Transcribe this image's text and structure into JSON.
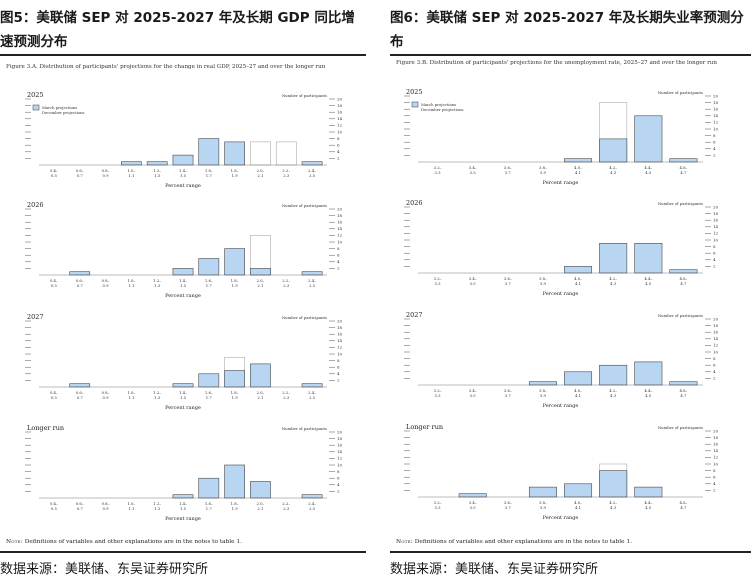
{
  "panels": [
    {
      "heading": "图5：美联储 SEP 对 2025-2027 年及长期 GDP 同比增速预测分布",
      "figure_caption": "Figure 3.A. Distribution of participants' projections for the change in real GDP, 2025–27 and over the longer run",
      "note_label": "Note:",
      "note_text": "Definitions of variables and other explanations are in the notes to table 1.",
      "source": "数据来源：美联储、东吴证券研究所"
    },
    {
      "heading": "图6：美联储 SEP 对 2025-2027 年及长期失业率预测分布",
      "figure_caption": "Figure 3.B. Distribution of participants' projections for the unemployment rate, 2025–27 and over the longer run",
      "note_label": "Note:",
      "note_text": "Definitions of variables and other explanations are in the notes to table 1.",
      "source": "数据来源：美联储、东吴证券研究所"
    }
  ],
  "chart_data": [
    {
      "type": "bar",
      "figure": "gdp",
      "title": "2025",
      "categories": [
        "0.4–0.5",
        "0.6–0.7",
        "0.8–0.9",
        "1.0–1.1",
        "1.2–1.3",
        "1.4–1.5",
        "1.6–1.7",
        "1.8–1.9",
        "2.0–2.1",
        "2.2–2.3",
        "2.4–2.5"
      ],
      "series": [
        {
          "name": "March projections",
          "values": [
            0,
            0,
            0,
            1,
            1,
            3,
            8,
            7,
            0,
            0,
            1
          ]
        },
        {
          "name": "December projections",
          "values": [
            0,
            0,
            0,
            0,
            0,
            0,
            0,
            0,
            7,
            7,
            0
          ]
        }
      ],
      "xlabel": "Percent range",
      "ylabel": "Number of participants",
      "ylim": [
        0,
        20
      ],
      "yticks": [
        2,
        4,
        6,
        8,
        10,
        12,
        14,
        16,
        18,
        20
      ],
      "legend": "top-left"
    },
    {
      "type": "bar",
      "figure": "gdp",
      "title": "2026",
      "categories": [
        "0.4–0.5",
        "0.6–0.7",
        "0.8–0.9",
        "1.0–1.1",
        "1.2–1.3",
        "1.4–1.5",
        "1.6–1.7",
        "1.8–1.9",
        "2.0–2.1",
        "2.2–2.3",
        "2.4–2.5"
      ],
      "series": [
        {
          "name": "March projections",
          "values": [
            0,
            1,
            0,
            0,
            0,
            2,
            5,
            8,
            2,
            0,
            1
          ]
        },
        {
          "name": "December projections",
          "values": [
            0,
            0,
            0,
            0,
            0,
            0,
            0,
            0,
            12,
            0,
            0
          ]
        }
      ],
      "xlabel": "Percent range",
      "ylabel": "Number of participants",
      "ylim": [
        0,
        20
      ],
      "yticks": [
        2,
        4,
        6,
        8,
        10,
        12,
        14,
        16,
        18,
        20
      ]
    },
    {
      "type": "bar",
      "figure": "gdp",
      "title": "2027",
      "categories": [
        "0.4–0.5",
        "0.6–0.7",
        "0.8–0.9",
        "1.0–1.1",
        "1.2–1.3",
        "1.4–1.5",
        "1.6–1.7",
        "1.8–1.9",
        "2.0–2.1",
        "2.2–2.3",
        "2.4–2.5"
      ],
      "series": [
        {
          "name": "March projections",
          "values": [
            0,
            1,
            0,
            0,
            0,
            1,
            4,
            5,
            7,
            0,
            1
          ]
        },
        {
          "name": "December projections",
          "values": [
            0,
            0,
            0,
            0,
            0,
            0,
            0,
            9,
            0,
            0,
            0
          ]
        }
      ],
      "xlabel": "Percent range",
      "ylabel": "Number of participants",
      "ylim": [
        0,
        20
      ],
      "yticks": [
        2,
        4,
        6,
        8,
        10,
        12,
        14,
        16,
        18,
        20
      ]
    },
    {
      "type": "bar",
      "figure": "gdp",
      "title": "Longer run",
      "categories": [
        "0.4–0.5",
        "0.6–0.7",
        "0.8–0.9",
        "1.0–1.1",
        "1.2–1.3",
        "1.4–1.5",
        "1.6–1.7",
        "1.8–1.9",
        "2.0–2.1",
        "2.2–2.3",
        "2.4–2.5"
      ],
      "series": [
        {
          "name": "March projections",
          "values": [
            0,
            0,
            0,
            0,
            0,
            1,
            6,
            10,
            5,
            0,
            1
          ]
        },
        {
          "name": "December projections",
          "values": [
            0,
            0,
            0,
            0,
            0,
            0,
            0,
            0,
            0,
            0,
            0
          ]
        }
      ],
      "xlabel": "Percent range",
      "ylabel": "Number of participants",
      "ylim": [
        0,
        20
      ],
      "yticks": [
        2,
        4,
        6,
        8,
        10,
        12,
        14,
        16,
        18,
        20
      ]
    },
    {
      "type": "bar",
      "figure": "unemployment",
      "title": "2025",
      "categories": [
        "3.2–3.3",
        "3.4–3.5",
        "3.6–3.7",
        "3.8–3.9",
        "4.0–4.1",
        "4.2–4.3",
        "4.4–4.5",
        "4.6–4.7"
      ],
      "series": [
        {
          "name": "March projections",
          "values": [
            0,
            0,
            0,
            0,
            1,
            7,
            14,
            1
          ]
        },
        {
          "name": "December projections",
          "values": [
            0,
            0,
            0,
            0,
            0,
            18,
            0,
            0
          ]
        }
      ],
      "xlabel": "Percent range",
      "ylabel": "Number of participants",
      "ylim": [
        0,
        20
      ],
      "yticks": [
        2,
        4,
        6,
        8,
        10,
        12,
        14,
        16,
        18,
        20
      ],
      "legend": "top-left"
    },
    {
      "type": "bar",
      "figure": "unemployment",
      "title": "2026",
      "categories": [
        "3.2–3.3",
        "3.4–3.5",
        "3.6–3.7",
        "3.8–3.9",
        "4.0–4.1",
        "4.2–4.3",
        "4.4–4.5",
        "4.6–4.7"
      ],
      "series": [
        {
          "name": "March projections",
          "values": [
            0,
            0,
            0,
            0,
            2,
            9,
            9,
            1
          ]
        },
        {
          "name": "December projections",
          "values": [
            0,
            0,
            0,
            0,
            0,
            0,
            0,
            0
          ]
        }
      ],
      "xlabel": "Percent range",
      "ylabel": "Number of participants",
      "ylim": [
        0,
        20
      ],
      "yticks": [
        2,
        4,
        6,
        8,
        10,
        12,
        14,
        16,
        18,
        20
      ]
    },
    {
      "type": "bar",
      "figure": "unemployment",
      "title": "2027",
      "categories": [
        "3.2–3.3",
        "3.4–3.5",
        "3.6–3.7",
        "3.8–3.9",
        "4.0–4.1",
        "4.2–4.3",
        "4.4–4.5",
        "4.6–4.7"
      ],
      "series": [
        {
          "name": "March projections",
          "values": [
            0,
            0,
            0,
            1,
            4,
            6,
            7,
            1
          ]
        },
        {
          "name": "December projections",
          "values": [
            0,
            0,
            0,
            0,
            0,
            0,
            0,
            0
          ]
        }
      ],
      "xlabel": "Percent range",
      "ylabel": "Number of participants",
      "ylim": [
        0,
        20
      ],
      "yticks": [
        2,
        4,
        6,
        8,
        10,
        12,
        14,
        16,
        18,
        20
      ]
    },
    {
      "type": "bar",
      "figure": "unemployment",
      "title": "Longer run",
      "categories": [
        "3.2–3.3",
        "3.4–3.5",
        "3.6–3.7",
        "3.8–3.9",
        "4.0–4.1",
        "4.2–4.3",
        "4.4–4.5",
        "4.6–4.7"
      ],
      "series": [
        {
          "name": "March projections",
          "values": [
            0,
            1,
            0,
            3,
            4,
            8,
            3,
            0
          ]
        },
        {
          "name": "December projections",
          "values": [
            0,
            0,
            0,
            0,
            0,
            10,
            0,
            0
          ]
        }
      ],
      "xlabel": "Percent range",
      "ylabel": "Number of participants",
      "ylim": [
        0,
        20
      ],
      "yticks": [
        2,
        4,
        6,
        8,
        10,
        12,
        14,
        16,
        18,
        20
      ]
    }
  ],
  "colors": {
    "bar_fill": "#b8d6f2",
    "bar_stroke": "#3a3a3a",
    "outline": "#999999",
    "axis": "#555555",
    "rule": "#222222"
  }
}
